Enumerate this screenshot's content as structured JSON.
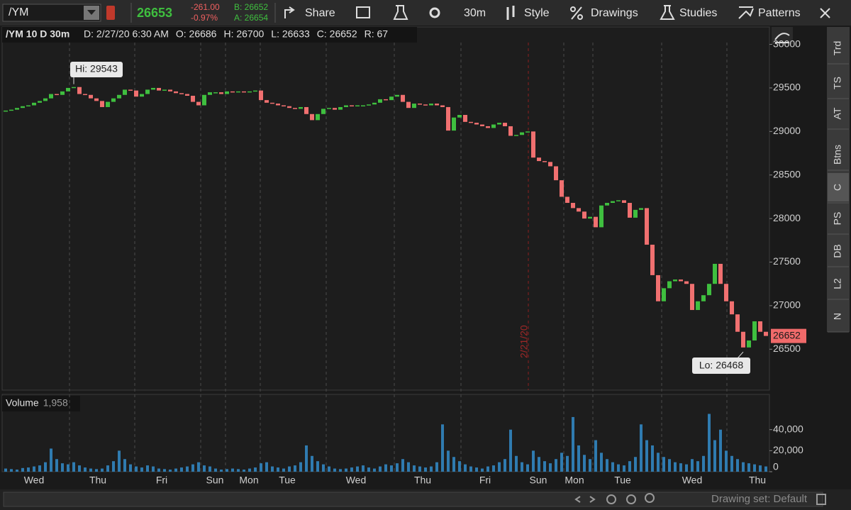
{
  "toolbar": {
    "symbol": "/YM",
    "last": "26653",
    "change": "-261.00",
    "change_pct": "-0.97%",
    "bid": "B: 26652",
    "ask": "A: 26654",
    "buttons": [
      "Share",
      "30m",
      "Style",
      "Drawings",
      "Studies",
      "Patterns"
    ]
  },
  "header": {
    "title": "/YM 10 D 30m",
    "fields": [
      "D: 2/27/20 6:30 AM",
      "O: 26686",
      "H: 26700",
      "L: 26633",
      "C: 26652",
      "R: 67"
    ]
  },
  "sidebar": [
    "Trd",
    "TS",
    "AT",
    "Btns",
    "C",
    "PS",
    "DB",
    "L2",
    "N"
  ],
  "footer": "Drawing set: Default",
  "chart_data": {
    "type": "candlestick",
    "close": [
      29240,
      29250,
      29270,
      29290,
      29300,
      29330,
      29350,
      29380,
      29430,
      29420,
      29460,
      29500,
      29510,
      29430,
      29420,
      29380,
      29350,
      29280,
      29340,
      29380,
      29420,
      29480,
      29470,
      29400,
      29430,
      29480,
      29500,
      29470,
      29480,
      29460,
      29440,
      29430,
      29410,
      29340,
      29300,
      29420,
      29450,
      29450,
      29430,
      29460,
      29450,
      29460,
      29450,
      29460,
      29470,
      29360,
      29330,
      29320,
      29300,
      29290,
      29270,
      29260,
      29280,
      29200,
      29130,
      29200,
      29260,
      29270,
      29250,
      29280,
      29300,
      29290,
      29300,
      29300,
      29310,
      29330,
      29370,
      29360,
      29400,
      29420,
      29340,
      29270,
      29320,
      29310,
      29300,
      29320,
      29300,
      29280,
      29010,
      29160,
      29190,
      29110,
      29100,
      29080,
      29060,
      29040,
      29080,
      29100,
      29060,
      28950,
      28960,
      28990,
      29000,
      28700,
      28660,
      28650,
      28600,
      28440,
      28250,
      28180,
      28120,
      28080,
      28000,
      28020,
      27900,
      28150,
      28180,
      28200,
      28210,
      28180,
      28010,
      28100,
      28120,
      27700,
      27350,
      27050,
      27200,
      27280,
      27300,
      27280,
      27250,
      26950,
      27050,
      27120,
      27250,
      27480,
      27250,
      27050,
      26900,
      26700,
      26520,
      26600,
      26820,
      26700,
      26652
    ],
    "volume": [
      3000,
      2500,
      2000,
      3500,
      4000,
      5000,
      6000,
      9000,
      22000,
      12000,
      8000,
      7000,
      9000,
      6000,
      4000,
      3000,
      2500,
      3000,
      6000,
      10000,
      20000,
      12000,
      7000,
      5000,
      4000,
      6000,
      5000,
      3000,
      2500,
      2000,
      3000,
      4000,
      5000,
      7000,
      9000,
      6000,
      5000,
      3000,
      2000,
      2500,
      3000,
      2500,
      2000,
      3000,
      4000,
      8000,
      9000,
      5000,
      4000,
      3000,
      5000,
      6000,
      9000,
      25000,
      15000,
      10000,
      7000,
      5000,
      3000,
      2500,
      3000,
      4000,
      5000,
      6000,
      4000,
      3000,
      5000,
      7000,
      6000,
      8000,
      12000,
      9000,
      6000,
      5000,
      4000,
      5000,
      9000,
      45000,
      20000,
      14000,
      10000,
      7000,
      5000,
      4000,
      3000,
      5000,
      6000,
      9000,
      12000,
      40000,
      15000,
      9000,
      7000,
      20000,
      14000,
      10000,
      8000,
      12000,
      18000,
      15000,
      52000,
      25000,
      16000,
      12000,
      30000,
      18000,
      12000,
      9000,
      7000,
      6000,
      10000,
      14000,
      45000,
      30000,
      25000,
      18000,
      14000,
      12000,
      9000,
      8000,
      7000,
      12000,
      10000,
      15000,
      55000,
      30000,
      40000,
      20000,
      15000,
      12000,
      9000,
      8000,
      7000,
      6000,
      5000
    ],
    "up_color": "#3fbf3f",
    "down_color": "#f07070",
    "volume_color": "#2f7bb0",
    "ylim": [
      26030,
      30200
    ],
    "yticks": [
      26500,
      27000,
      27500,
      28000,
      28500,
      29000,
      29500,
      30000
    ],
    "volume_ylim": [
      0,
      56000
    ],
    "volume_yticks": [
      0,
      {
        "value": 20000,
        "label": "20,000"
      },
      {
        "value": 40000,
        "label": "40,000"
      }
    ],
    "volume_label": "Volume",
    "volume_value": "1,958",
    "day_labels": [
      "Wed",
      "Thu",
      "Fri",
      "Sun",
      "Mon",
      "Tue",
      "Wed",
      "Thu",
      "Fri",
      "Sun",
      "Mon",
      "Tue",
      "Wed",
      "Thu"
    ],
    "marker_label": "2/21/20",
    "hi": {
      "label": "Hi: 29543",
      "value": 29543
    },
    "lo": {
      "label": "Lo: 26468",
      "value": 26468
    },
    "last_price": 26652
  }
}
